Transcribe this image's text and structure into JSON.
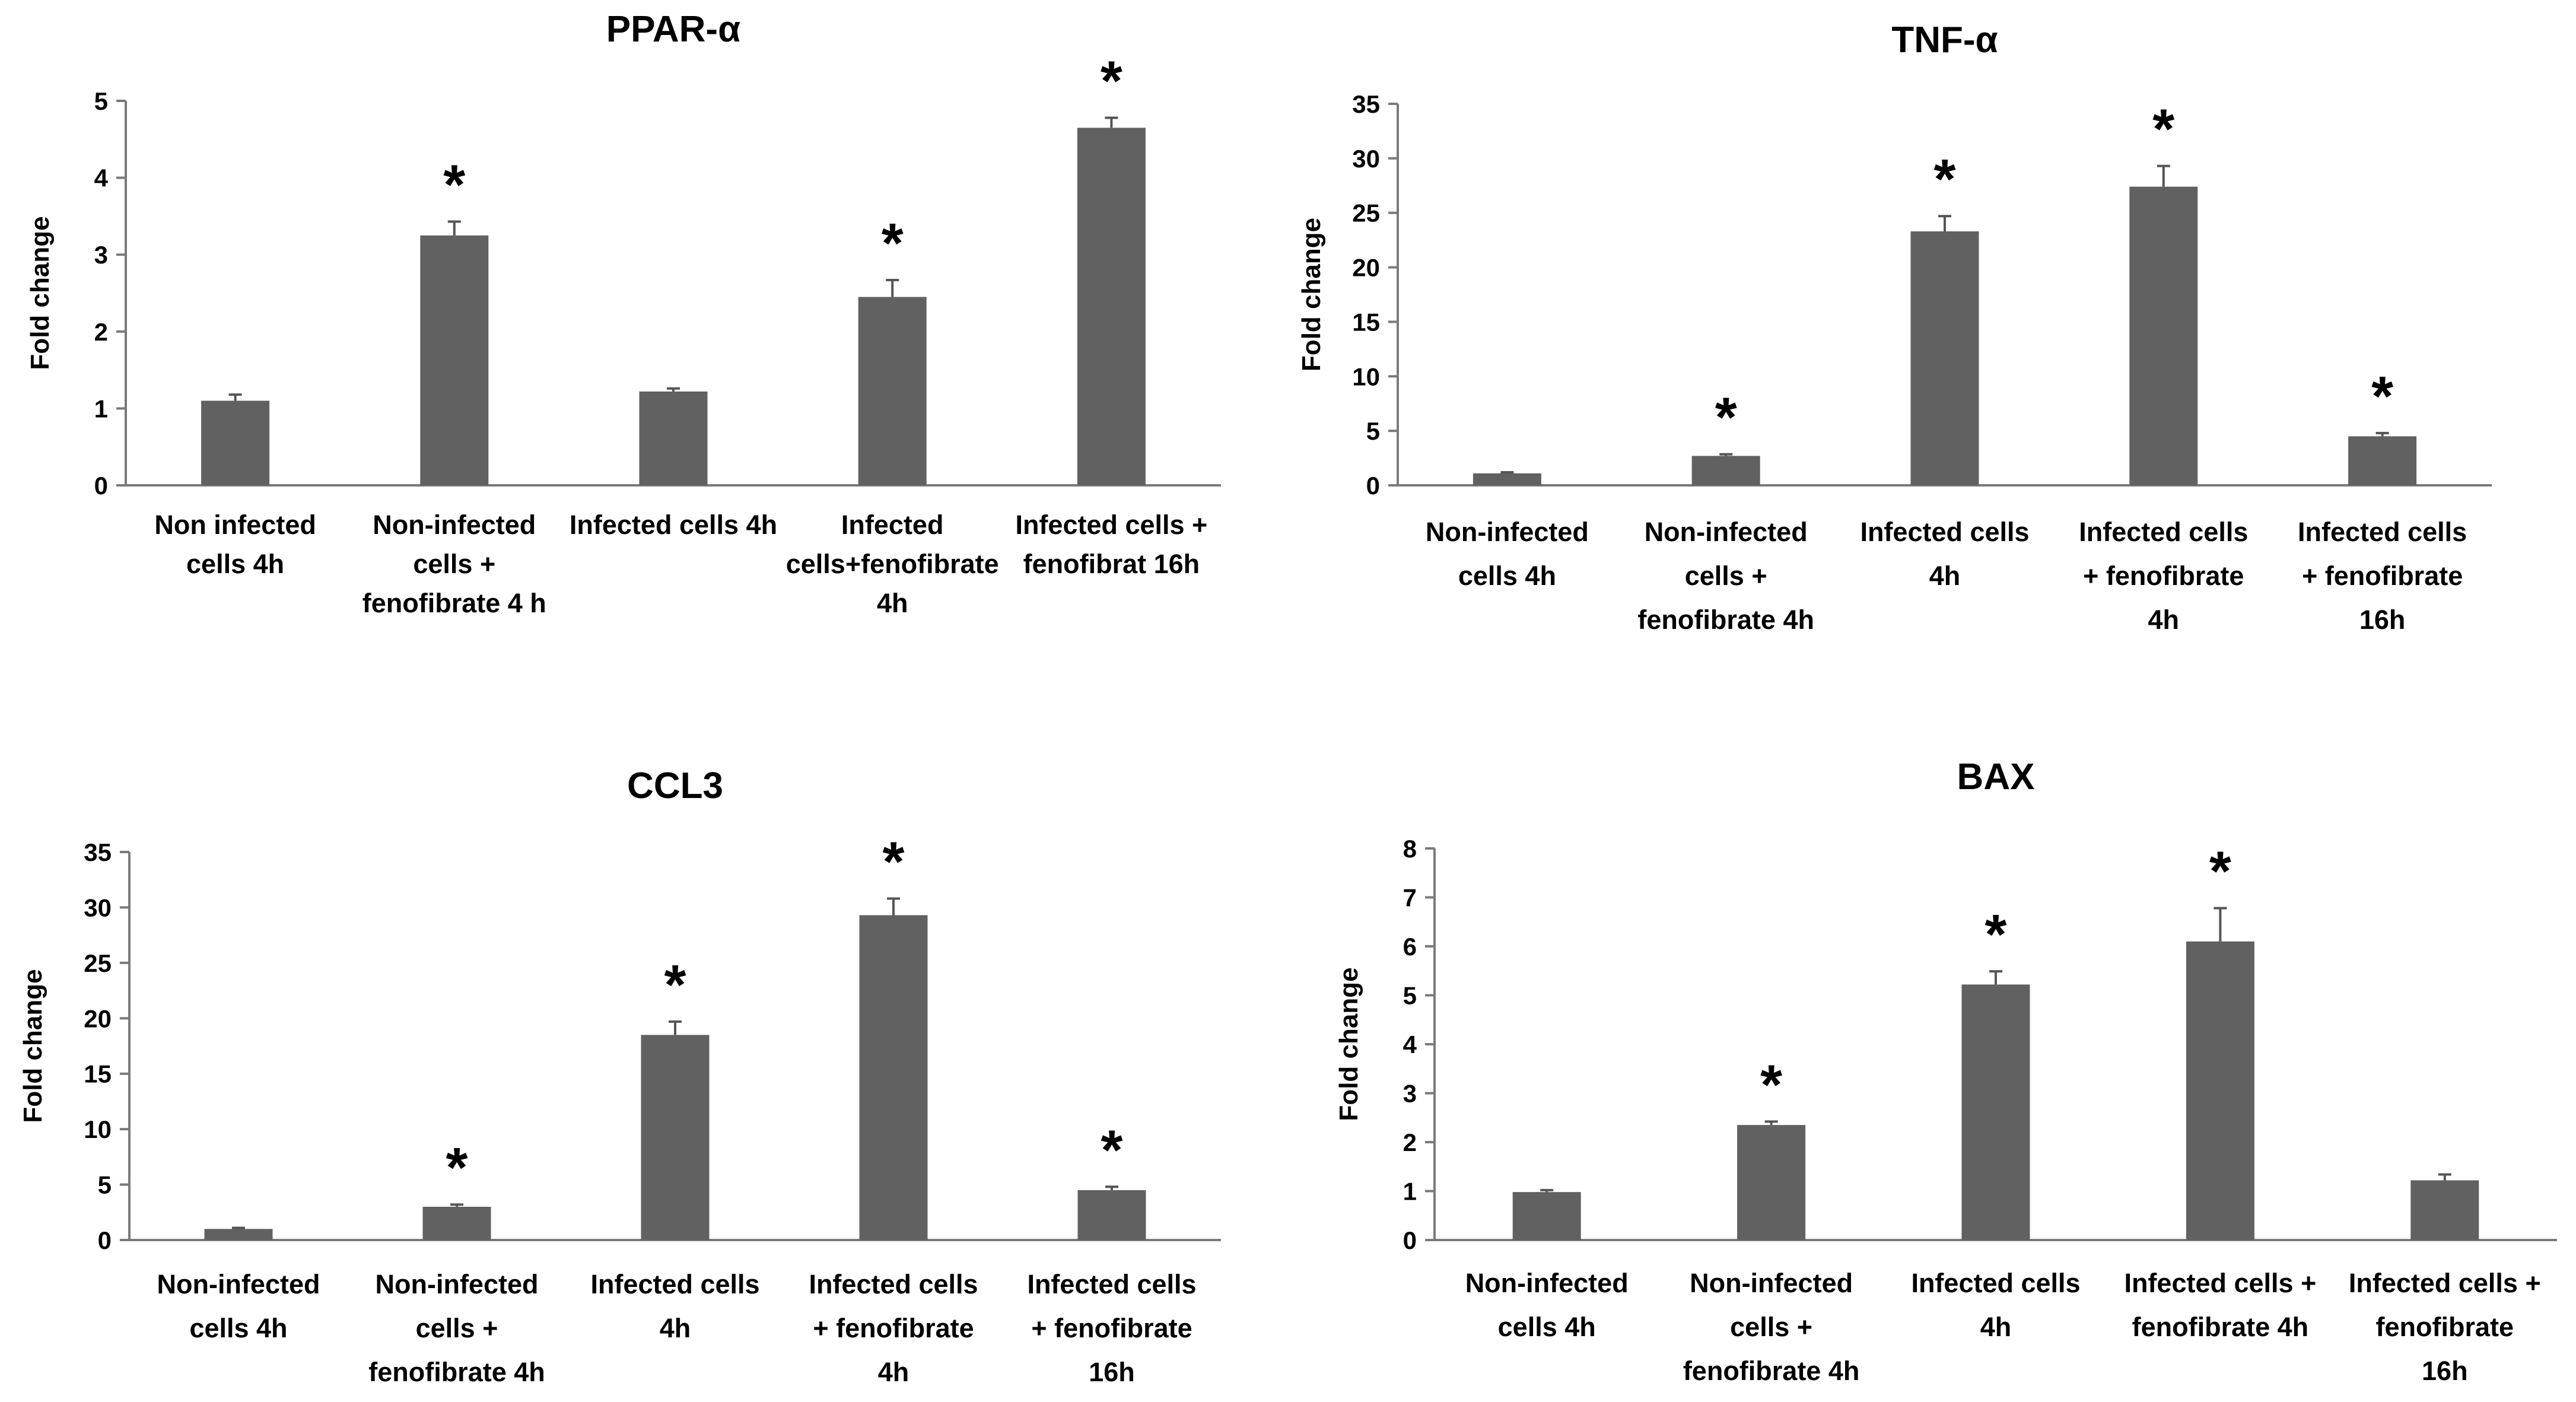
{
  "chart_data": [
    {
      "type": "bar",
      "title": "PPAR-α",
      "ylabel": "Fold change",
      "ylim": [
        0,
        5
      ],
      "yticks": [
        0,
        1,
        2,
        3,
        4,
        5
      ],
      "categories": [
        [
          "Non infected",
          "cells 4h"
        ],
        [
          "Non-infected",
          "cells +",
          "fenofibrate 4 h"
        ],
        [
          "Infected cells 4h"
        ],
        [
          "Infected",
          "cells+fenofibrate",
          "4h"
        ],
        [
          "Infected cells +",
          "fenofibrat 16h"
        ]
      ],
      "values": [
        1.1,
        3.25,
        1.22,
        2.45,
        4.65
      ],
      "errors": [
        0.08,
        0.18,
        0.04,
        0.22,
        0.13
      ],
      "significance": [
        "",
        "*",
        "",
        "*",
        "*"
      ],
      "bar_color": "#616161",
      "grid": false
    },
    {
      "type": "bar",
      "title": "TNF-α",
      "ylabel": "Fold change",
      "ylim": [
        0,
        35
      ],
      "yticks": [
        0,
        5,
        10,
        15,
        20,
        25,
        30,
        35
      ],
      "categories": [
        [
          "Non-infected",
          "cells 4h"
        ],
        [
          "Non-infected",
          "cells +",
          "fenofibrate 4h"
        ],
        [
          "Infected cells",
          "4h"
        ],
        [
          "Infected cells",
          "+ fenofibrate",
          "4h"
        ],
        [
          "Infected cells",
          "+ fenofibrate",
          "16h"
        ]
      ],
      "values": [
        1.1,
        2.7,
        23.3,
        27.4,
        4.5
      ],
      "errors": [
        0.1,
        0.15,
        1.4,
        1.9,
        0.3
      ],
      "significance": [
        "",
        "*",
        "*",
        "*",
        "*"
      ],
      "bar_color": "#616161",
      "grid": false
    },
    {
      "type": "bar",
      "title": "CCL3",
      "ylabel": "Fold change",
      "ylim": [
        0,
        35
      ],
      "yticks": [
        0,
        5,
        10,
        15,
        20,
        25,
        30,
        35
      ],
      "categories": [
        [
          "Non-infected",
          "cells 4h"
        ],
        [
          "Non-infected",
          "cells +",
          "fenofibrate 4h"
        ],
        [
          "Infected cells",
          "4h"
        ],
        [
          "Infected cells",
          "+ fenofibrate",
          "4h"
        ],
        [
          "Infected cells",
          "+ fenofibrate",
          "16h"
        ]
      ],
      "values": [
        1.0,
        3.0,
        18.5,
        29.3,
        4.5
      ],
      "errors": [
        0.1,
        0.2,
        1.2,
        1.5,
        0.3
      ],
      "significance": [
        "",
        "*",
        "*",
        "*",
        "*"
      ],
      "bar_color": "#616161",
      "grid": false
    },
    {
      "type": "bar",
      "title": "BAX",
      "ylabel": "Fold change",
      "ylim": [
        0,
        8
      ],
      "yticks": [
        0,
        1,
        2,
        3,
        4,
        5,
        6,
        7,
        8
      ],
      "categories": [
        [
          "Non-infected",
          "cells 4h"
        ],
        [
          "Non-infected",
          "cells +",
          "fenofibrate 4h"
        ],
        [
          "Infected cells",
          "4h"
        ],
        [
          "Infected cells +",
          "fenofibrate 4h"
        ],
        [
          "Infected cells +",
          "fenofibrate",
          "16h"
        ]
      ],
      "values": [
        0.98,
        2.35,
        5.22,
        6.1,
        1.22
      ],
      "errors": [
        0.04,
        0.07,
        0.27,
        0.68,
        0.12
      ],
      "significance": [
        "",
        "*",
        "*",
        "*",
        ""
      ],
      "bar_color": "#616161",
      "grid": false
    }
  ]
}
